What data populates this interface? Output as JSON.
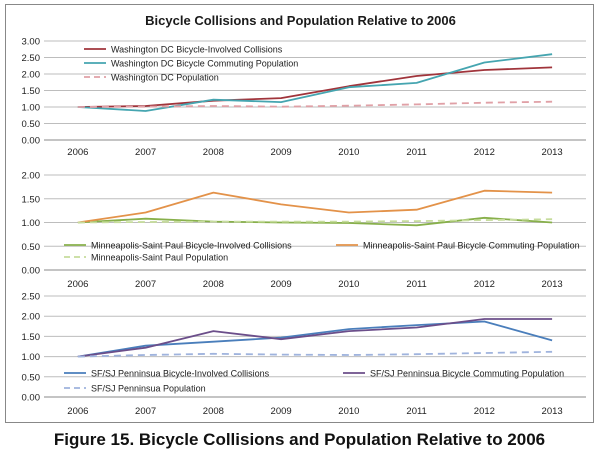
{
  "page": {
    "title": "Bicycle Collisions and Population Relative to 2006",
    "caption": "Figure 15. Bicycle Collisions and Population Relative to 2006"
  },
  "chart_data": [
    {
      "type": "line",
      "title": "Bicycle Collisions and Population Relative to 2006",
      "categories": [
        "2006",
        "2007",
        "2008",
        "2009",
        "2010",
        "2011",
        "2012",
        "2013"
      ],
      "ylim": [
        0,
        3
      ],
      "yticks": [
        "0.00",
        "0.50",
        "1.00",
        "1.50",
        "2.00",
        "2.50",
        "3.00"
      ],
      "grid": true,
      "legend": "top-left",
      "series": [
        {
          "name": "Washington DC Bicycle-Involved Collisions",
          "color": "#A0343B",
          "dash": false,
          "values": [
            1.0,
            1.03,
            1.19,
            1.27,
            1.63,
            1.94,
            2.12,
            2.2
          ]
        },
        {
          "name": "Washington DC Bicycle Commuting Population",
          "color": "#45A5B0",
          "dash": false,
          "values": [
            1.0,
            0.88,
            1.22,
            1.15,
            1.6,
            1.73,
            2.35,
            2.6
          ]
        },
        {
          "name": "Washington DC Population",
          "color": "#E0A0A6",
          "dash": true,
          "values": [
            1.0,
            1.01,
            1.03,
            1.01,
            1.04,
            1.08,
            1.13,
            1.16
          ]
        }
      ]
    },
    {
      "type": "line",
      "categories": [
        "2006",
        "2007",
        "2008",
        "2009",
        "2010",
        "2011",
        "2012",
        "2013"
      ],
      "ylim": [
        0,
        2
      ],
      "yticks": [
        "0.00",
        "0.50",
        "1.00",
        "1.50",
        "2.00"
      ],
      "grid": true,
      "legend": "bottom",
      "series": [
        {
          "name": "Minneapolis-Saint Paul Bicycle-Involved Collisions",
          "color": "#88B04B",
          "dash": false,
          "values": [
            1.0,
            1.08,
            1.02,
            1.0,
            0.99,
            0.94,
            1.1,
            1.0
          ]
        },
        {
          "name": "Minneapolis-Saint Paul Bicycle Commuting Population",
          "color": "#E39249",
          "dash": false,
          "values": [
            1.0,
            1.21,
            1.63,
            1.38,
            1.21,
            1.27,
            1.67,
            1.63
          ]
        },
        {
          "name": "Minneapolis-Saint Paul Population",
          "color": "#C6DC9C",
          "dash": true,
          "values": [
            1.0,
            1.01,
            1.02,
            1.02,
            1.02,
            1.03,
            1.05,
            1.07
          ]
        }
      ]
    },
    {
      "type": "line",
      "categories": [
        "2006",
        "2007",
        "2008",
        "2009",
        "2010",
        "2011",
        "2012",
        "2013"
      ],
      "ylim": [
        0,
        2.5
      ],
      "yticks": [
        "0.00",
        "0.50",
        "1.00",
        "1.50",
        "2.00",
        "2.50"
      ],
      "grid": true,
      "legend": "bottom",
      "series": [
        {
          "name": "SF/SJ Penninsua Bicycle-Involved Collisions",
          "color": "#4A7EBB",
          "dash": false,
          "values": [
            1.0,
            1.27,
            1.37,
            1.47,
            1.68,
            1.78,
            1.87,
            1.4
          ]
        },
        {
          "name": "SF/SJ Penninsua Bicycle Commuting Population",
          "color": "#6B4E8A",
          "dash": false,
          "values": [
            1.0,
            1.22,
            1.63,
            1.43,
            1.63,
            1.72,
            1.93,
            1.93
          ]
        },
        {
          "name": "SF/SJ Penninsua Population",
          "color": "#9FB3DD",
          "dash": true,
          "values": [
            1.0,
            1.04,
            1.07,
            1.05,
            1.04,
            1.06,
            1.09,
            1.12
          ]
        }
      ]
    }
  ]
}
